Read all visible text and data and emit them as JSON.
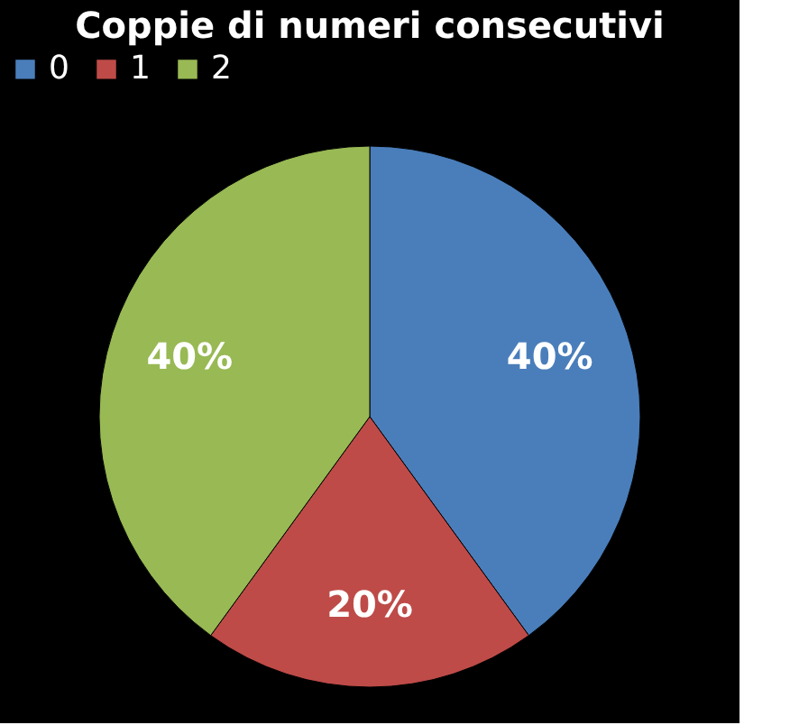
{
  "chart_data": {
    "type": "pie",
    "title": "Coppie di numeri consecutivi",
    "categories": [
      "0",
      "1",
      "2"
    ],
    "values": [
      40,
      20,
      40
    ],
    "colors": [
      "#4a7ebb",
      "#be4b48",
      "#98b954"
    ],
    "value_labels": [
      "40%",
      "20%",
      "40%"
    ],
    "legend": "top"
  }
}
